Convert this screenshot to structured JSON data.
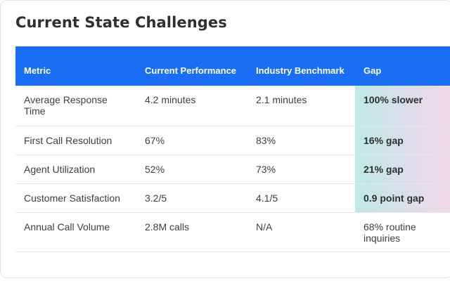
{
  "title": "Current State Challenges",
  "table": {
    "headers": [
      "Metric",
      "Current Performance",
      "Industry Benchmark",
      "Gap"
    ],
    "rows": [
      [
        "Average Response Time",
        "4.2 minutes",
        "2.1 minutes",
        "100% slower"
      ],
      [
        "First Call Resolution",
        "67%",
        "83%",
        "16% gap"
      ],
      [
        "Agent Utilization",
        "52%",
        "73%",
        "21% gap"
      ],
      [
        "Customer Satisfaction",
        "3.2/5",
        "4.1/5",
        "0.9 point gap"
      ],
      [
        "Annual Call Volume",
        "2.8M calls",
        "N/A",
        "68% routine inquiries"
      ]
    ]
  },
  "colors": {
    "header_bg": "#1a6ef5",
    "gap_highlight_start": "#bfe9e6",
    "gap_highlight_end": "#f4d9e3"
  }
}
